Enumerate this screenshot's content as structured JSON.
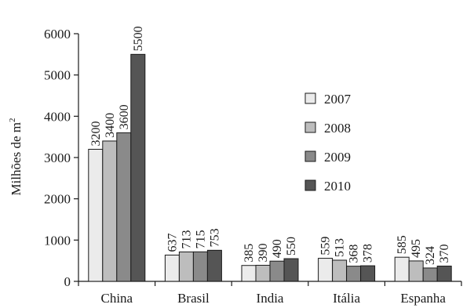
{
  "chart_data": {
    "type": "bar",
    "ylabel": "Milhões de m",
    "ylabel_superscript": "2",
    "ylim": [
      0,
      6000
    ],
    "yticks": [
      0,
      1000,
      2000,
      3000,
      4000,
      5000,
      6000
    ],
    "categories": [
      "China",
      "Brasil",
      "India",
      "Itália",
      "Espanha"
    ],
    "series": [
      {
        "name": "2007",
        "color": "#ebebeb",
        "values": [
          3200,
          637,
          385,
          559,
          585
        ]
      },
      {
        "name": "2008",
        "color": "#bdbdbd",
        "values": [
          3400,
          713,
          390,
          513,
          495
        ]
      },
      {
        "name": "2009",
        "color": "#8a8a8a",
        "values": [
          3600,
          715,
          490,
          368,
          324
        ]
      },
      {
        "name": "2010",
        "color": "#555555",
        "values": [
          5500,
          753,
          550,
          378,
          370
        ]
      }
    ],
    "legend_position": "right",
    "grid": false
  }
}
